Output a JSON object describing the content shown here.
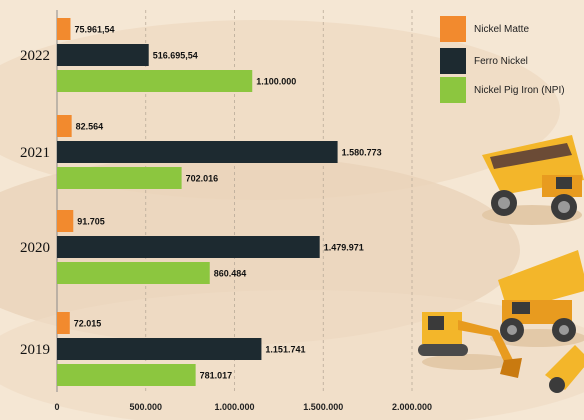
{
  "chart_data": {
    "type": "bar",
    "orientation": "horizontal",
    "categories": [
      "2022",
      "2021",
      "2020",
      "2019"
    ],
    "series": [
      {
        "name": "Nickel Matte",
        "color": "#f28a2e",
        "values": [
          75961.54,
          82564,
          91705,
          72015
        ],
        "labels": [
          "75.961,54",
          "82.564",
          "91.705",
          "72.015"
        ]
      },
      {
        "name": "Ferro Nickel",
        "color": "#1d2a30",
        "values": [
          516695.54,
          1580773,
          1479971,
          1151741
        ],
        "labels": [
          "516.695,54",
          "1.580.773",
          "1.479.971",
          "1.151.741"
        ]
      },
      {
        "name": "Nickel Pig Iron (NPI)",
        "color": "#8cc63f",
        "values": [
          1100000,
          702016,
          860484,
          781017
        ],
        "labels": [
          "1.100.000",
          "702.016",
          "860.484",
          "781.017"
        ]
      }
    ],
    "xlim": [
      0,
      2000000
    ],
    "xticks": [
      0,
      500000,
      1000000,
      1500000,
      2000000
    ],
    "xtick_labels": [
      "0",
      "500.000",
      "1.000.000",
      "1.500.000",
      "2.000.000"
    ],
    "grid": "vertical dashed",
    "legend_position": "top-right",
    "title": "",
    "xlabel": "",
    "ylabel": ""
  },
  "legend": {
    "items": [
      {
        "label": "Nickel Matte",
        "color": "#f28a2e"
      },
      {
        "label": "Ferro Nickel",
        "color": "#1d2a30"
      },
      {
        "label": "Nickel Pig Iron (NPI)",
        "color": "#8cc63f"
      }
    ]
  }
}
